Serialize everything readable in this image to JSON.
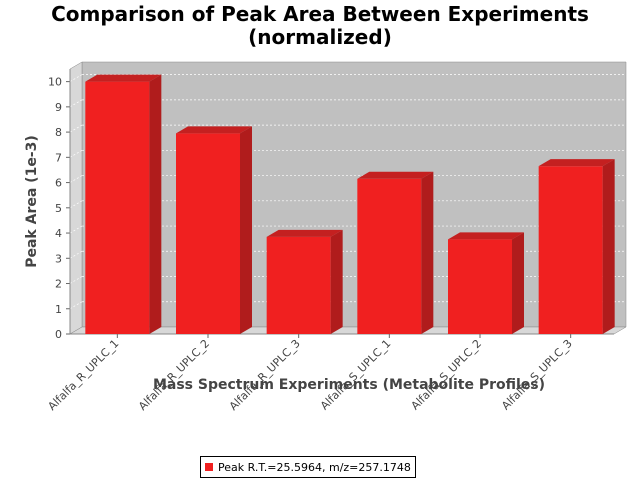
{
  "chart_data": {
    "type": "bar",
    "title": "Comparison of Peak Area Between Experiments",
    "subtitle": "(normalized)",
    "xlabel": "Mass Spectrum Experiments (Metabolite Profiles)",
    "ylabel": "Peak Area (1e-3)",
    "categories": [
      "Alfalfa_R_UPLC_1",
      "Alfalfa_R_UPLC_2",
      "Alfalfa_R_UPLC_3",
      "Alfalfa_S_UPLC_1",
      "Alfalfa_S_UPLC_2",
      "Alfalfa_S_UPLC_3"
    ],
    "series": [
      {
        "name": "Peak R.T.=25.5964, m/z=257.1748",
        "values": [
          10.0,
          7.95,
          3.85,
          6.15,
          3.75,
          6.65
        ],
        "color": "#f02020"
      }
    ],
    "yticks": [
      "0",
      "1",
      "2",
      "3",
      "4",
      "5",
      "6",
      "7",
      "8",
      "9",
      "10"
    ],
    "ylim": [
      0,
      10.5
    ],
    "grid": true,
    "legend_position": "bottom",
    "plot_background": "#c0c0c0",
    "style": "3d"
  }
}
